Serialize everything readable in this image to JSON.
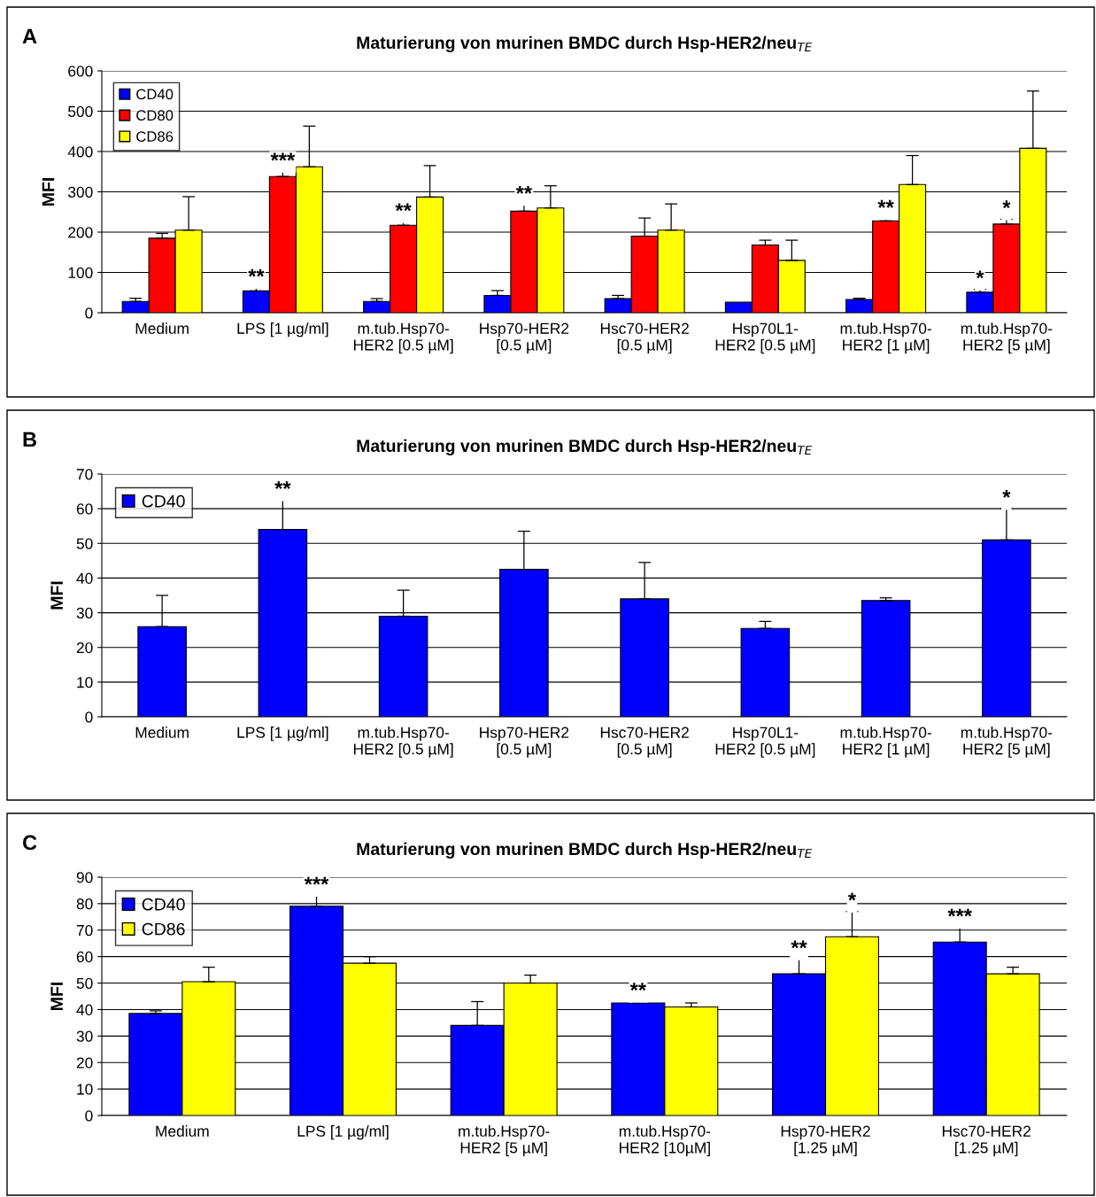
{
  "chart_data": [
    {
      "type": "bar",
      "title": "Maturierung von murinen BMDC durch Hsp-HER2/neu$_{TE}$",
      "ylabel": "MFI",
      "annotations": [
        "A"
      ],
      "categories": [
        "Medium",
        "LPS [1 µg/ml]",
        "m.tub.Hsp70-\nHER2 [0.5 µM]",
        "Hsp70-HER2\n[0.5 µM]",
        "Hsc70-HER2\n[0.5 µM]",
        "Hsp70L1-\nHER2 [0.5 µM]",
        "m.tub.Hsp70-\nHER2 [1 µM]",
        "m.tub.Hsp70-\nHER2 [5 µM]"
      ],
      "series": [
        {
          "name": "CD40",
          "color": "#0000ff",
          "values": [
            28,
            54,
            28,
            43,
            35,
            26,
            33,
            51
          ],
          "errors": [
            [
              28,
              36
            ],
            [
              54,
              62
            ],
            [
              28,
              35
            ],
            [
              43,
              55
            ],
            [
              35,
              43
            ],
            null,
            [
              33,
              36
            ],
            [
              51,
              58
            ]
          ],
          "value_labels": [
            null,
            "**",
            null,
            null,
            null,
            null,
            null,
            "*"
          ]
        },
        {
          "name": "CD80",
          "color": "#ff0000",
          "values": [
            185,
            338,
            217,
            252,
            190,
            168,
            228,
            220
          ],
          "errors": [
            [
              185,
              197
            ],
            [
              338,
              350
            ],
            [
              217,
              225
            ],
            [
              252,
              268
            ],
            [
              190,
              235
            ],
            [
              168,
              180
            ],
            [
              228,
              233
            ],
            [
              220,
              232
            ]
          ],
          "value_labels": [
            null,
            "***",
            "**",
            "**",
            null,
            null,
            "**",
            "*"
          ]
        },
        {
          "name": "CD86",
          "color": "#ffff00",
          "values": [
            205,
            362,
            287,
            260,
            205,
            130,
            318,
            408
          ],
          "errors": [
            [
              205,
              288
            ],
            [
              362,
              463
            ],
            [
              287,
              365
            ],
            [
              260,
              315
            ],
            [
              205,
              270
            ],
            [
              130,
              180
            ],
            [
              318,
              390
            ],
            [
              408,
              550
            ]
          ]
        }
      ],
      "ylim": [
        0,
        600
      ],
      "yticks": [
        0,
        100,
        200,
        300,
        400,
        500,
        600
      ],
      "grid": "y",
      "legend": "top left"
    },
    {
      "type": "bar",
      "title": "Maturierung von murinen BMDC durch Hsp-HER2/neu$_{TE}$",
      "ylabel": "MFI",
      "annotations": [
        "B"
      ],
      "categories": [
        "Medium",
        "LPS [1 µg/ml]",
        "m.tub.Hsp70-\nHER2 [0.5 µM]",
        "Hsp70-HER2\n[0.5 µM]",
        "Hsc70-HER2\n[0.5 µM]",
        "Hsp70L1-\nHER2 [0.5 µM]",
        "m.tub.Hsp70-\nHER2 [1 µM]",
        "m.tub.Hsp70-\nHER2 [5 µM]"
      ],
      "series": [
        {
          "name": "CD40",
          "color": "#0000ff",
          "values": [
            26,
            54,
            29,
            42.5,
            34,
            25.5,
            33.5,
            51
          ],
          "errors": [
            [
              26,
              35
            ],
            [
              54,
              62.5
            ],
            [
              29,
              36.5
            ],
            [
              42.5,
              53.5
            ],
            [
              34,
              44.5
            ],
            [
              25.5,
              27.5
            ],
            [
              33.5,
              34.3
            ],
            [
              51,
              60
            ]
          ],
          "value_labels": [
            null,
            "**",
            null,
            null,
            null,
            null,
            null,
            "*"
          ]
        }
      ],
      "ylim": [
        0,
        70
      ],
      "yticks": [
        0,
        10,
        20,
        30,
        40,
        50,
        60,
        70
      ],
      "grid": "y",
      "legend": "top left"
    },
    {
      "type": "bar",
      "title": "Maturierung von murinen BMDC durch Hsp-HER2/neu$_{TE}$",
      "ylabel": "MFI",
      "annotations": [
        "C"
      ],
      "categories": [
        "Medium",
        "LPS [1 µg/ml]",
        "m.tub.Hsp70-\nHER2 [5 µM]",
        "m.tub.Hsp70-\nHER2 [10µM]",
        "Hsp70-HER2\n[1.25 µM]",
        "Hsc70-HER2\n[1.25 µM]"
      ],
      "series": [
        {
          "name": "CD40",
          "color": "#0000ff",
          "values": [
            38.5,
            79,
            34,
            42.5,
            53.5,
            65.5
          ],
          "errors": [
            [
              38.5,
              39.5
            ],
            [
              79,
              83
            ],
            [
              34,
              43
            ],
            [
              42.5,
              43
            ],
            [
              53.5,
              59
            ],
            [
              65.5,
              71
            ]
          ],
          "value_labels": [
            null,
            "***",
            null,
            "**",
            "**",
            "***"
          ]
        },
        {
          "name": "CD86",
          "color": "#ffff00",
          "values": [
            50.5,
            57.5,
            50,
            41,
            67.5,
            53.5
          ],
          "errors": [
            [
              50.5,
              56
            ],
            [
              57.5,
              60
            ],
            [
              50,
              53
            ],
            [
              41,
              42.5
            ],
            [
              67.5,
              77
            ],
            [
              53.5,
              56
            ]
          ],
          "value_labels": [
            null,
            null,
            null,
            null,
            "*",
            null
          ]
        }
      ],
      "ylim": [
        0,
        90
      ],
      "yticks": [
        0,
        10,
        20,
        30,
        40,
        50,
        60,
        70,
        80,
        90
      ],
      "grid": "y",
      "legend": "top left"
    }
  ]
}
